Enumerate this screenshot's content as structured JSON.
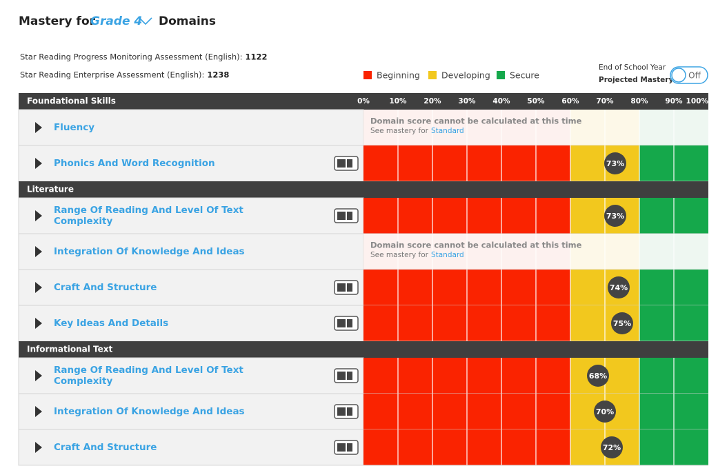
{
  "header": {
    "title_prefix": "Mastery for",
    "grade": "Grade 4",
    "title_suffix": "Domains"
  },
  "assessments": [
    {
      "label": "Star Reading Progress Monitoring Assessment (English):",
      "score": "1122"
    },
    {
      "label": "Star Reading Enterprise Assessment (English):",
      "score": "1238"
    }
  ],
  "legend": [
    {
      "name": "Beginning",
      "color": "#fa2300",
      "to": 60
    },
    {
      "name": "Developing",
      "color": "#f2c81e",
      "to": 80
    },
    {
      "name": "Secure",
      "color": "#15a84b",
      "to": 100
    }
  ],
  "toggle": {
    "line1": "End of School Year",
    "line2": "Projected Mastery",
    "state": "Off"
  },
  "scale": {
    "ticks": [
      {
        "value": 0,
        "label": "0%"
      },
      {
        "value": 10,
        "label": "10%"
      },
      {
        "value": 20,
        "label": "20%"
      },
      {
        "value": 30,
        "label": "30%"
      },
      {
        "value": 40,
        "label": "40%"
      },
      {
        "value": 50,
        "label": "50%"
      },
      {
        "value": 60,
        "label": "60%"
      },
      {
        "value": 70,
        "label": "70%"
      },
      {
        "value": 80,
        "label": "80%"
      },
      {
        "value": 90,
        "label": "90%"
      },
      {
        "value": 100,
        "label": "100%"
      }
    ]
  },
  "sections": [
    {
      "title": "Foundational Skills",
      "domains": [
        {
          "name": "Fluency",
          "message": "Domain score cannot be calculated at this time",
          "see": "See mastery for",
          "link": "Standard"
        },
        {
          "name": "Phonics And Word Recognition",
          "score": 73,
          "label": "73%"
        }
      ]
    },
    {
      "title": "Literature",
      "domains": [
        {
          "name": "Range Of Reading And Level Of Text Complexity",
          "score": 73,
          "label": "73%"
        },
        {
          "name": "Integration Of Knowledge And Ideas",
          "message": "Domain score cannot be calculated at this time",
          "see": "See mastery for",
          "link": "Standard"
        },
        {
          "name": "Craft And Structure",
          "score": 74,
          "label": "74%"
        },
        {
          "name": "Key Ideas And Details",
          "score": 75,
          "label": "75%"
        }
      ]
    },
    {
      "title": "Informational Text",
      "domains": [
        {
          "name": "Range Of Reading And Level Of Text Complexity",
          "score": 68,
          "label": "68%"
        },
        {
          "name": "Integration Of Knowledge And Ideas",
          "score": 70,
          "label": "70%"
        },
        {
          "name": "Craft And Structure",
          "score": 72,
          "label": "72%"
        }
      ]
    }
  ]
}
